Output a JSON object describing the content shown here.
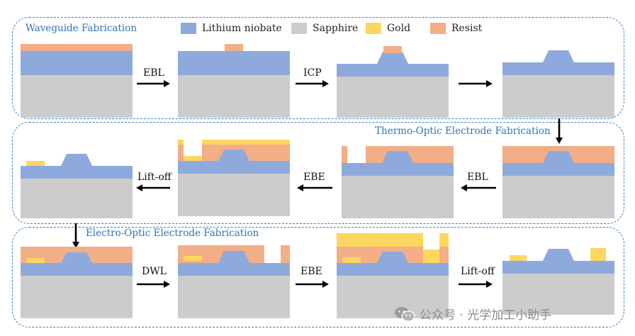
{
  "legend": [
    {
      "label": "Lithium niobate",
      "color": "#8eaadc"
    },
    {
      "label": "Sapphire",
      "color": "#cdcccc"
    },
    {
      "label": "Gold",
      "color": "#fcd75f"
    },
    {
      "label": "Resist",
      "color": "#f2ae86"
    }
  ],
  "sections": {
    "waveguide": "Waveguide Fabrication",
    "thermo": "Thermo-Optic Electrode Fabrication",
    "electro": "Electro-Optic Electrode Fabrication"
  },
  "steps": {
    "row1": [
      "EBL",
      "ICP",
      ""
    ],
    "row2": [
      "EBL",
      "EBE",
      "Lift-off"
    ],
    "row3": [
      "DWL",
      "EBE",
      "Lift-off"
    ]
  },
  "watermark": "公众号 · 光学加工小助手",
  "colors": {
    "panel_border": "#3a7cc4",
    "title": "#2f73b8",
    "arrow": "#000000"
  }
}
